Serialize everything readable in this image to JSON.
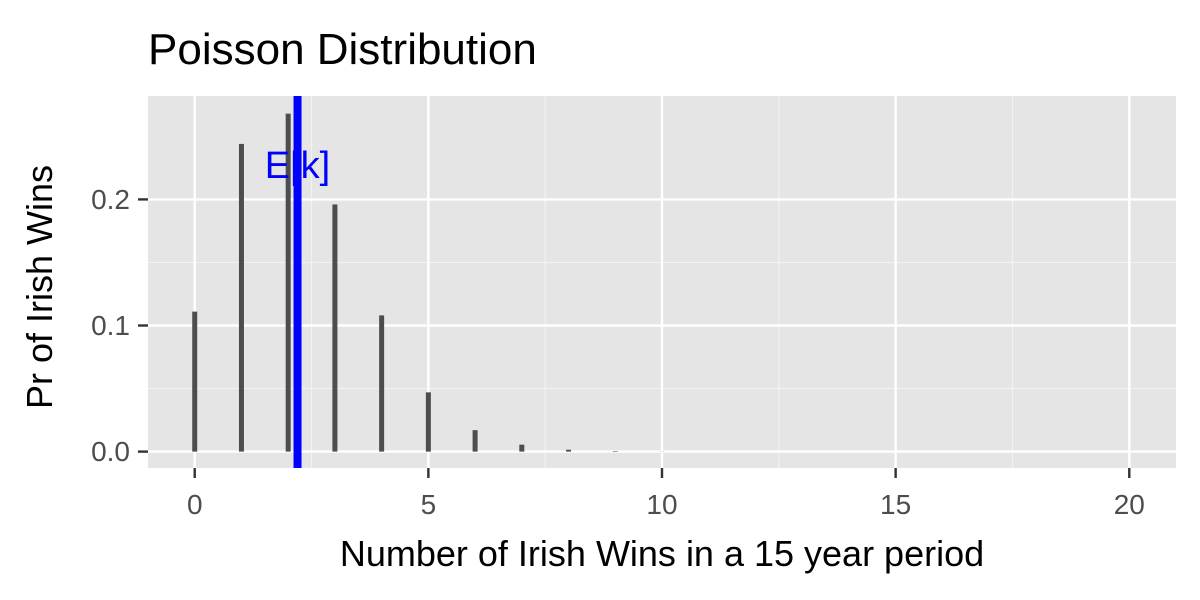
{
  "chart_data": {
    "type": "bar",
    "title": "Poisson Distribution",
    "xlabel": "Number of Irish Wins in a 15 year period",
    "ylabel": "Pr of Irish Wins",
    "xlim": [
      -1,
      21
    ],
    "ylim": [
      -0.013,
      0.282
    ],
    "x_ticks": [
      0,
      5,
      10,
      15,
      20
    ],
    "x_tick_labels": [
      "0",
      "5",
      "10",
      "15",
      "20"
    ],
    "y_ticks": [
      0.0,
      0.1,
      0.2
    ],
    "y_tick_labels": [
      "0.0",
      "0.1",
      "0.2"
    ],
    "grid": true,
    "series": [
      {
        "x": [
          0,
          1,
          2,
          3,
          4,
          5,
          6,
          7,
          8,
          9,
          10,
          11,
          12,
          13,
          14,
          15,
          16,
          17,
          18,
          19,
          20
        ],
        "values": [
          0.111,
          0.244,
          0.268,
          0.196,
          0.108,
          0.047,
          0.017,
          0.0055,
          0.0015,
          0.0004,
          0.0001,
          0,
          0,
          0,
          0,
          0,
          0,
          0,
          0,
          0,
          0
        ]
      }
    ],
    "annotations": [
      {
        "type": "vline",
        "x": 2.2,
        "color": "#0000ff"
      },
      {
        "type": "text",
        "text": "E[k]",
        "x": 2.2,
        "y": 0.225,
        "color": "#0000ff"
      }
    ],
    "colors": {
      "panel": "#e5e5e5",
      "grid_major": "#ffffff",
      "grid_minor": "#f2f2f2",
      "bar": "#4d4d4d",
      "expected": "#0000ff"
    }
  }
}
